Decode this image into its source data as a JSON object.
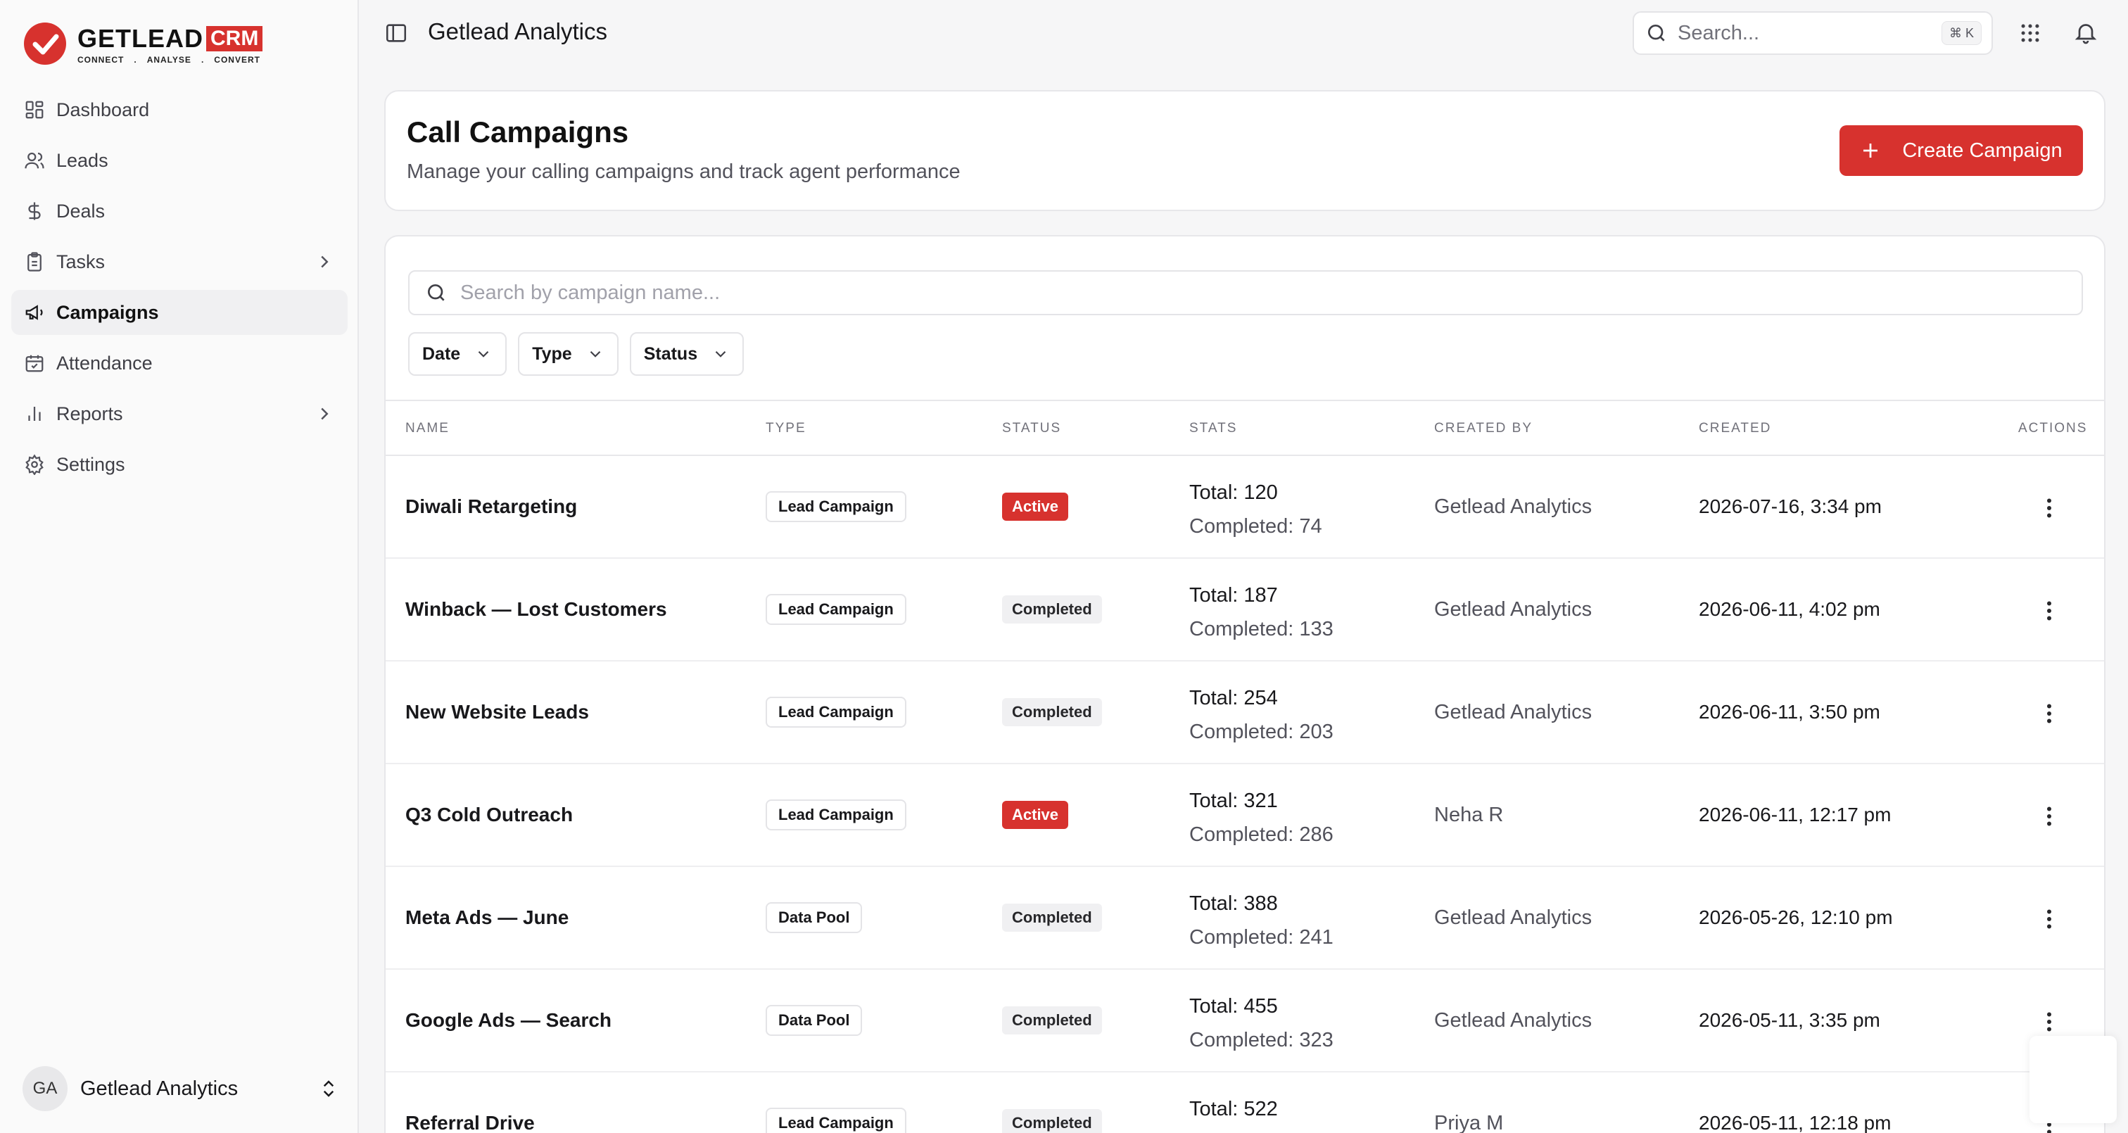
{
  "brand": {
    "name": "GETLEAD",
    "badge": "CRM",
    "tagline": [
      "CONNECT",
      ".",
      "ANALYSE",
      ".",
      "CONVERT"
    ],
    "accent": "#d7322e"
  },
  "sidebar": {
    "items": [
      {
        "label": "Dashboard",
        "icon": "dashboard-grid-icon",
        "active": false,
        "has_chevron": false
      },
      {
        "label": "Leads",
        "icon": "users-icon",
        "active": false,
        "has_chevron": false
      },
      {
        "label": "Deals",
        "icon": "dollar-icon",
        "active": false,
        "has_chevron": false
      },
      {
        "label": "Tasks",
        "icon": "clipboard-icon",
        "active": false,
        "has_chevron": true
      },
      {
        "label": "Campaigns",
        "icon": "megaphone-icon",
        "active": true,
        "has_chevron": false
      },
      {
        "label": "Attendance",
        "icon": "calendar-check-icon",
        "active": false,
        "has_chevron": false
      },
      {
        "label": "Reports",
        "icon": "bar-chart-icon",
        "active": false,
        "has_chevron": true
      },
      {
        "label": "Settings",
        "icon": "gear-icon",
        "active": false,
        "has_chevron": false
      }
    ],
    "user": {
      "initials": "GA",
      "name": "Getlead Analytics"
    }
  },
  "topbar": {
    "title": "Getlead Analytics",
    "search_placeholder": "Search...",
    "shortcut": "⌘ K"
  },
  "header": {
    "title": "Call Campaigns",
    "subtitle": "Manage your calling campaigns and track agent performance",
    "create_label": "Create Campaign"
  },
  "filters": {
    "search_placeholder": "Search by campaign name...",
    "items": [
      "Date",
      "Type",
      "Status"
    ]
  },
  "table": {
    "columns": [
      "NAME",
      "TYPE",
      "STATUS",
      "STATS",
      "CREATED BY",
      "CREATED",
      "ACTIONS"
    ],
    "rows": [
      {
        "name": "Diwali Retargeting",
        "type": "Lead Campaign",
        "status": "Active",
        "total": "Total: 120",
        "completed": "Completed: 74",
        "created_by": "Getlead Analytics",
        "created": "2026-07-16, 3:34 pm"
      },
      {
        "name": "Winback — Lost Customers",
        "type": "Lead Campaign",
        "status": "Completed",
        "total": "Total: 187",
        "completed": "Completed: 133",
        "created_by": "Getlead Analytics",
        "created": "2026-06-11, 4:02 pm"
      },
      {
        "name": "New Website Leads",
        "type": "Lead Campaign",
        "status": "Completed",
        "total": "Total: 254",
        "completed": "Completed: 203",
        "created_by": "Getlead Analytics",
        "created": "2026-06-11, 3:50 pm"
      },
      {
        "name": "Q3 Cold Outreach",
        "type": "Lead Campaign",
        "status": "Active",
        "total": "Total: 321",
        "completed": "Completed: 286",
        "created_by": "Neha R",
        "created": "2026-06-11, 12:17 pm"
      },
      {
        "name": "Meta Ads — June",
        "type": "Data Pool",
        "status": "Completed",
        "total": "Total: 388",
        "completed": "Completed: 241",
        "created_by": "Getlead Analytics",
        "created": "2026-05-26, 12:10 pm"
      },
      {
        "name": "Google Ads — Search",
        "type": "Data Pool",
        "status": "Completed",
        "total": "Total: 455",
        "completed": "Completed: 323",
        "created_by": "Getlead Analytics",
        "created": "2026-05-11, 3:35 pm"
      },
      {
        "name": "Referral Drive",
        "type": "Lead Campaign",
        "status": "Completed",
        "total": "Total: 522",
        "completed": "",
        "created_by": "Priya M",
        "created": "2026-05-11, 12:18 pm"
      }
    ]
  }
}
